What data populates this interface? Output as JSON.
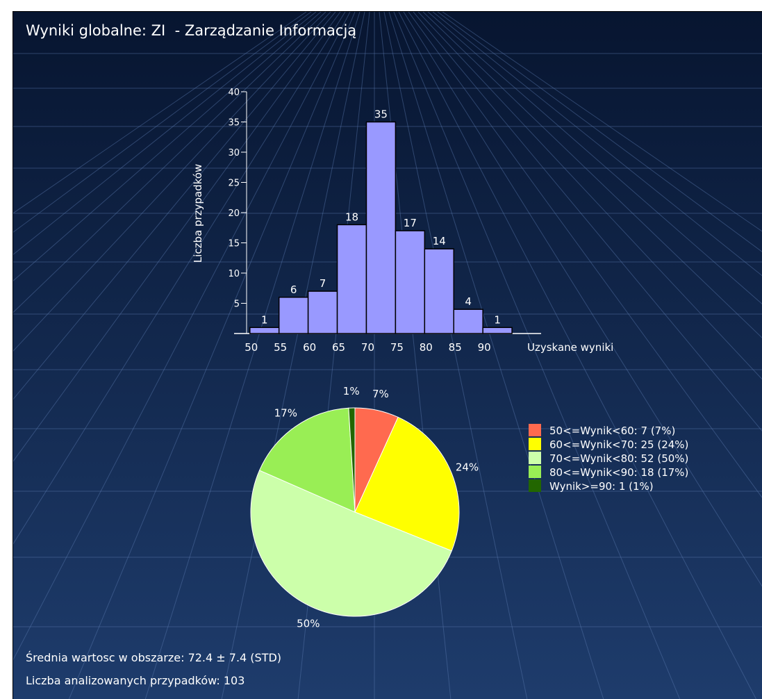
{
  "title": "Wyniki globalne: ZI  - Zarządzanie Informacją",
  "footer": {
    "mean_line": "Średnia wartosc w obszarze: 72.4 ± 7.4 (STD)",
    "count_line": "Liczba analizowanych przypadków: 103"
  },
  "colors": {
    "background_top": "#071530",
    "background_bottom": "#1e3c6c",
    "bar_fill": "#9999ff",
    "text": "#ffffff"
  },
  "chart_data": [
    {
      "type": "bar",
      "ylabel": "Liczba przypadków",
      "xlabel": "Uzyskane wyniki",
      "x_ticks": [
        "50",
        "55",
        "60",
        "65",
        "70",
        "75",
        "80",
        "85",
        "90"
      ],
      "bins": [
        {
          "from": 50,
          "to": 55,
          "value": 1
        },
        {
          "from": 55,
          "to": 60,
          "value": 6
        },
        {
          "from": 60,
          "to": 65,
          "value": 7
        },
        {
          "from": 65,
          "to": 70,
          "value": 18
        },
        {
          "from": 70,
          "to": 75,
          "value": 35
        },
        {
          "from": 75,
          "to": 80,
          "value": 17
        },
        {
          "from": 80,
          "to": 85,
          "value": 14
        },
        {
          "from": 85,
          "to": 90,
          "value": 4
        },
        {
          "from": 90,
          "to": 95,
          "value": 1
        }
      ],
      "y_ticks": [
        5,
        10,
        15,
        20,
        25,
        30,
        35,
        40
      ],
      "ylim": [
        0,
        40
      ],
      "xlim": [
        48,
        100
      ]
    },
    {
      "type": "pie",
      "slices": [
        {
          "label": "50<=Wynik<60: 7 (7%)",
          "value": 7,
          "percent": "7%",
          "color": "#ff6a4f"
        },
        {
          "label": "60<=Wynik<70: 25 (24%)",
          "value": 25,
          "percent": "24%",
          "color": "#ffff00"
        },
        {
          "label": "70<=Wynik<80: 52 (50%)",
          "value": 52,
          "percent": "50%",
          "color": "#ccffaa"
        },
        {
          "label": "80<=Wynik<90: 18 (17%)",
          "value": 18,
          "percent": "17%",
          "color": "#99ee55"
        },
        {
          "label": "Wynik>=90: 1 (1%)",
          "value": 1,
          "percent": "1%",
          "color": "#226600"
        }
      ],
      "legend_position": "right"
    }
  ]
}
